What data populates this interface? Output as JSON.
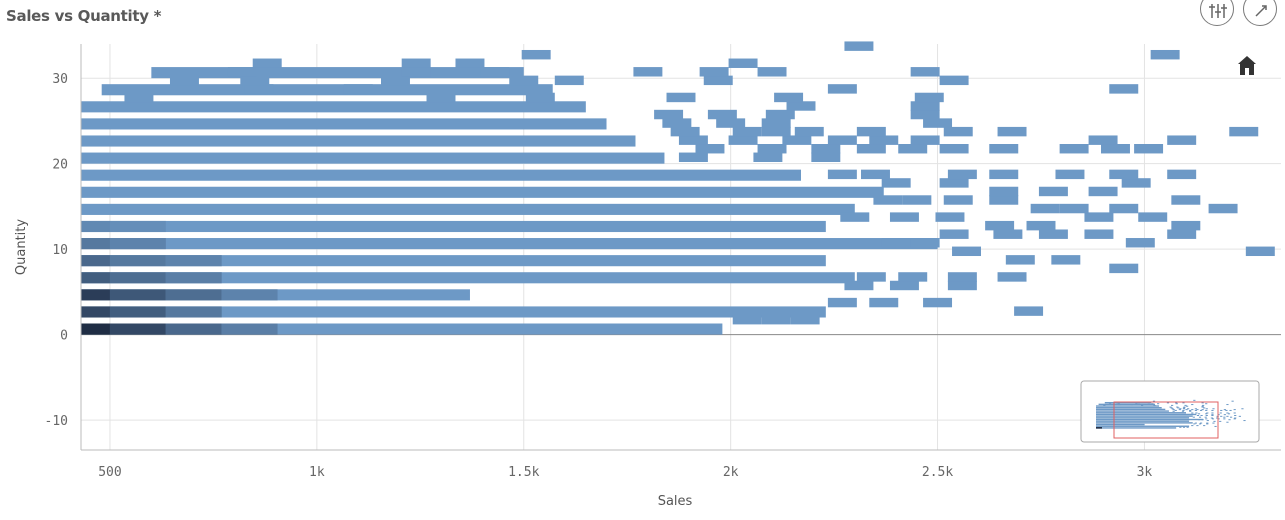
{
  "header": {
    "title": "Sales vs Quantity *",
    "tools": [
      {
        "icon": "adjust-sliders-icon"
      },
      {
        "icon": "expand-icon"
      }
    ]
  },
  "chart_data": {
    "type": "heatmap",
    "description_of_marks": "binned scatter (density cells)",
    "title": "Sales vs Quantity *",
    "xlabel": "Sales",
    "ylabel": "Quantity",
    "xlim": [
      430,
      3330
    ],
    "ylim": [
      -13.5,
      34
    ],
    "x_ticks": [
      {
        "value": 500,
        "label": "500"
      },
      {
        "value": 1000,
        "label": "1k"
      },
      {
        "value": 1500,
        "label": "1.5k"
      },
      {
        "value": 2000,
        "label": "2k"
      },
      {
        "value": 2500,
        "label": "2.5k"
      },
      {
        "value": 3000,
        "label": "3k"
      }
    ],
    "y_ticks": [
      {
        "value": -10,
        "label": "-10"
      },
      {
        "value": 0,
        "label": "0"
      },
      {
        "value": 10,
        "label": "10"
      },
      {
        "value": 20,
        "label": "20"
      },
      {
        "value": 30,
        "label": "30"
      }
    ],
    "grid": true,
    "colors": {
      "light": "#6d99c6",
      "mid": "#5c7fa5",
      "dark": "#1f2d44"
    },
    "dense_cells": [
      {
        "x0": 430,
        "x1": 500,
        "y": 0,
        "density": 1.0
      },
      {
        "x0": 500,
        "x1": 635,
        "y": 0,
        "density": 0.75
      },
      {
        "x0": 635,
        "x1": 770,
        "y": 0,
        "density": 0.45
      },
      {
        "x0": 770,
        "x1": 905,
        "y": 0,
        "density": 0.25
      },
      {
        "x0": 430,
        "x1": 500,
        "y": 2,
        "density": 0.75
      },
      {
        "x0": 500,
        "x1": 635,
        "y": 2,
        "density": 0.55
      },
      {
        "x0": 635,
        "x1": 770,
        "y": 2,
        "density": 0.3
      },
      {
        "x0": 430,
        "x1": 500,
        "y": 4,
        "density": 0.85
      },
      {
        "x0": 500,
        "x1": 635,
        "y": 4,
        "density": 0.6
      },
      {
        "x0": 635,
        "x1": 770,
        "y": 4,
        "density": 0.4
      },
      {
        "x0": 770,
        "x1": 905,
        "y": 4,
        "density": 0.2
      },
      {
        "x0": 430,
        "x1": 500,
        "y": 6,
        "density": 0.55
      },
      {
        "x0": 500,
        "x1": 635,
        "y": 6,
        "density": 0.4
      },
      {
        "x0": 635,
        "x1": 770,
        "y": 6,
        "density": 0.25
      },
      {
        "x0": 430,
        "x1": 500,
        "y": 8,
        "density": 0.45
      },
      {
        "x0": 500,
        "x1": 635,
        "y": 8,
        "density": 0.3
      },
      {
        "x0": 635,
        "x1": 770,
        "y": 8,
        "density": 0.2
      },
      {
        "x0": 430,
        "x1": 500,
        "y": 10,
        "density": 0.3
      },
      {
        "x0": 500,
        "x1": 635,
        "y": 10,
        "density": 0.2
      },
      {
        "x0": 430,
        "x1": 500,
        "y": 12,
        "density": 0.15
      },
      {
        "x0": 500,
        "x1": 635,
        "y": 12,
        "density": 0.1
      }
    ],
    "row_extents": [
      {
        "y": 0,
        "x0": 430,
        "x1": 1980
      },
      {
        "y": 2,
        "x0": 430,
        "x1": 2230
      },
      {
        "y": 4,
        "x0": 430,
        "x1": 1370
      },
      {
        "y": 6,
        "x0": 430,
        "x1": 2300
      },
      {
        "y": 8,
        "x0": 430,
        "x1": 2230
      },
      {
        "y": 10,
        "x0": 430,
        "x1": 2500
      },
      {
        "y": 12,
        "x0": 430,
        "x1": 2230
      },
      {
        "y": 14,
        "x0": 430,
        "x1": 2300
      },
      {
        "y": 16,
        "x0": 430,
        "x1": 2370
      },
      {
        "y": 18,
        "x0": 430,
        "x1": 2170
      },
      {
        "y": 20,
        "x0": 430,
        "x1": 1840
      },
      {
        "y": 22,
        "x0": 430,
        "x1": 1770
      },
      {
        "y": 24,
        "x0": 430,
        "x1": 1700
      },
      {
        "y": 26,
        "x0": 430,
        "x1": 1650
      },
      {
        "y": 28,
        "x0": 480,
        "x1": 1570
      },
      {
        "y": 30,
        "x0": 600,
        "x1": 1500
      }
    ],
    "scatter_bins": [
      {
        "x": 2040,
        "y": 1
      },
      {
        "x": 2110,
        "y": 1
      },
      {
        "x": 2180,
        "y": 1
      },
      {
        "x": 2270,
        "y": 3
      },
      {
        "x": 2370,
        "y": 3
      },
      {
        "x": 2500,
        "y": 3
      },
      {
        "x": 2720,
        "y": 2
      },
      {
        "x": 2310,
        "y": 5
      },
      {
        "x": 2420,
        "y": 5
      },
      {
        "x": 2560,
        "y": 5
      },
      {
        "x": 2340,
        "y": 6
      },
      {
        "x": 2440,
        "y": 6
      },
      {
        "x": 2560,
        "y": 6
      },
      {
        "x": 2680,
        "y": 6
      },
      {
        "x": 2950,
        "y": 7
      },
      {
        "x": 2570,
        "y": 9
      },
      {
        "x": 2700,
        "y": 8
      },
      {
        "x": 2810,
        "y": 8
      },
      {
        "x": 3280,
        "y": 9
      },
      {
        "x": 2400,
        "y": 10
      },
      {
        "x": 2470,
        "y": 10
      },
      {
        "x": 2540,
        "y": 11
      },
      {
        "x": 2670,
        "y": 11
      },
      {
        "x": 2780,
        "y": 11
      },
      {
        "x": 2890,
        "y": 11
      },
      {
        "x": 2990,
        "y": 10
      },
      {
        "x": 3090,
        "y": 11
      },
      {
        "x": 2300,
        "y": 13
      },
      {
        "x": 2420,
        "y": 13
      },
      {
        "x": 2530,
        "y": 13
      },
      {
        "x": 2650,
        "y": 12
      },
      {
        "x": 2750,
        "y": 12
      },
      {
        "x": 2890,
        "y": 13
      },
      {
        "x": 3020,
        "y": 13
      },
      {
        "x": 3100,
        "y": 12
      },
      {
        "x": 2380,
        "y": 15
      },
      {
        "x": 2450,
        "y": 15
      },
      {
        "x": 2550,
        "y": 15
      },
      {
        "x": 2660,
        "y": 15
      },
      {
        "x": 2760,
        "y": 14
      },
      {
        "x": 2830,
        "y": 14
      },
      {
        "x": 2950,
        "y": 14
      },
      {
        "x": 3100,
        "y": 15
      },
      {
        "x": 3190,
        "y": 14
      },
      {
        "x": 2400,
        "y": 17
      },
      {
        "x": 2540,
        "y": 17
      },
      {
        "x": 2660,
        "y": 16
      },
      {
        "x": 2780,
        "y": 16
      },
      {
        "x": 2900,
        "y": 16
      },
      {
        "x": 2980,
        "y": 17
      },
      {
        "x": 2270,
        "y": 18
      },
      {
        "x": 2350,
        "y": 18
      },
      {
        "x": 2560,
        "y": 18
      },
      {
        "x": 2660,
        "y": 18
      },
      {
        "x": 2820,
        "y": 18
      },
      {
        "x": 2950,
        "y": 18
      },
      {
        "x": 3090,
        "y": 18
      },
      {
        "x": 1910,
        "y": 20
      },
      {
        "x": 2090,
        "y": 20
      },
      {
        "x": 2230,
        "y": 20
      },
      {
        "x": 1950,
        "y": 21
      },
      {
        "x": 2100,
        "y": 21
      },
      {
        "x": 2230,
        "y": 21
      },
      {
        "x": 2340,
        "y": 21
      },
      {
        "x": 2440,
        "y": 21
      },
      {
        "x": 2540,
        "y": 21
      },
      {
        "x": 2660,
        "y": 21
      },
      {
        "x": 2830,
        "y": 21
      },
      {
        "x": 2930,
        "y": 21
      },
      {
        "x": 3010,
        "y": 21
      },
      {
        "x": 1910,
        "y": 22
      },
      {
        "x": 2030,
        "y": 22
      },
      {
        "x": 2160,
        "y": 22
      },
      {
        "x": 2270,
        "y": 22
      },
      {
        "x": 2370,
        "y": 22
      },
      {
        "x": 2470,
        "y": 22
      },
      {
        "x": 2900,
        "y": 22
      },
      {
        "x": 3090,
        "y": 22
      },
      {
        "x": 1890,
        "y": 23
      },
      {
        "x": 2040,
        "y": 23
      },
      {
        "x": 2110,
        "y": 23
      },
      {
        "x": 2190,
        "y": 23
      },
      {
        "x": 2340,
        "y": 23
      },
      {
        "x": 2550,
        "y": 23
      },
      {
        "x": 2680,
        "y": 23
      },
      {
        "x": 3240,
        "y": 23
      },
      {
        "x": 1870,
        "y": 24
      },
      {
        "x": 2000,
        "y": 24
      },
      {
        "x": 2110,
        "y": 24
      },
      {
        "x": 2500,
        "y": 24
      },
      {
        "x": 1850,
        "y": 25
      },
      {
        "x": 1980,
        "y": 25
      },
      {
        "x": 2120,
        "y": 25
      },
      {
        "x": 2470,
        "y": 25
      },
      {
        "x": 2170,
        "y": 26
      },
      {
        "x": 2470,
        "y": 26
      },
      {
        "x": 1880,
        "y": 27
      },
      {
        "x": 2140,
        "y": 27
      },
      {
        "x": 2480,
        "y": 27
      },
      {
        "x": 570,
        "y": 27
      },
      {
        "x": 860,
        "y": 28
      },
      {
        "x": 1100,
        "y": 28
      },
      {
        "x": 1300,
        "y": 27
      },
      {
        "x": 1540,
        "y": 27
      },
      {
        "x": 2270,
        "y": 28
      },
      {
        "x": 2950,
        "y": 28
      },
      {
        "x": 1500,
        "y": 29
      },
      {
        "x": 1610,
        "y": 29
      },
      {
        "x": 1970,
        "y": 29
      },
      {
        "x": 2540,
        "y": 29
      },
      {
        "x": 680,
        "y": 29
      },
      {
        "x": 850,
        "y": 29
      },
      {
        "x": 1190,
        "y": 29
      },
      {
        "x": 1240,
        "y": 30
      },
      {
        "x": 1430,
        "y": 30
      },
      {
        "x": 1800,
        "y": 30
      },
      {
        "x": 1960,
        "y": 30
      },
      {
        "x": 2100,
        "y": 30
      },
      {
        "x": 2470,
        "y": 30
      },
      {
        "x": 820,
        "y": 30
      },
      {
        "x": 1240,
        "y": 31
      },
      {
        "x": 1370,
        "y": 31
      },
      {
        "x": 2030,
        "y": 31
      },
      {
        "x": 880,
        "y": 31
      },
      {
        "x": 1530,
        "y": 32
      },
      {
        "x": 3050,
        "y": 32
      },
      {
        "x": 2310,
        "y": 33
      }
    ],
    "minimap": {
      "visible": true,
      "selection_color": "#e06060"
    }
  }
}
